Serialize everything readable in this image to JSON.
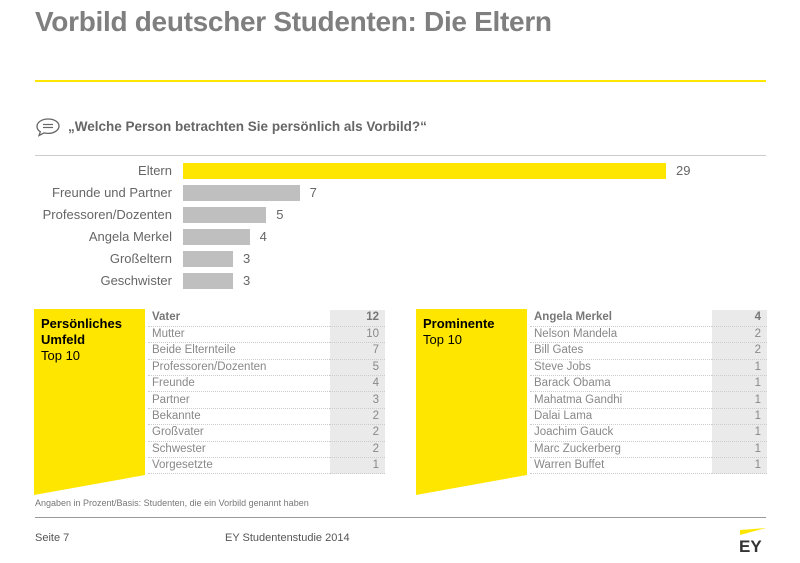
{
  "title": "Vorbild deutscher Studenten: Die Eltern",
  "question": "„Welche Person betrachten Sie persönlich als Vorbild?“",
  "colors": {
    "accent": "#ffe600",
    "bar_gray": "#bfbfbf"
  },
  "chart_data": {
    "type": "bar",
    "orientation": "horizontal",
    "categories": [
      "Eltern",
      "Freunde und Partner",
      "Professoren/Dozenten",
      "Angela Merkel",
      "Großeltern",
      "Geschwister"
    ],
    "values": [
      29,
      7,
      5,
      4,
      3,
      3
    ],
    "highlight": "Eltern"
  },
  "panels": [
    {
      "title": "Persönliches Umfeld",
      "subtitle": "Top 10",
      "rows": [
        [
          "Vater",
          "12"
        ],
        [
          "Mutter",
          "10"
        ],
        [
          "Beide Elternteile",
          "7"
        ],
        [
          "Professoren/Dozenten",
          "5"
        ],
        [
          "Freunde",
          "4"
        ],
        [
          "Partner",
          "3"
        ],
        [
          "Bekannte",
          "2"
        ],
        [
          "Großvater",
          "2"
        ],
        [
          "Schwester",
          "2"
        ],
        [
          "Vorgesetzte",
          "1"
        ]
      ]
    },
    {
      "title": "Prominente",
      "subtitle": "Top 10",
      "rows": [
        [
          "Angela Merkel",
          "4"
        ],
        [
          "Nelson Mandela",
          "2"
        ],
        [
          "Bill Gates",
          "2"
        ],
        [
          "Steve Jobs",
          "1"
        ],
        [
          "Barack Obama",
          "1"
        ],
        [
          "Mahatma Gandhi",
          "1"
        ],
        [
          "Dalai Lama",
          "1"
        ],
        [
          "Joachim Gauck",
          "1"
        ],
        [
          "Marc Zuckerberg",
          "1"
        ],
        [
          "Warren Buffet",
          "1"
        ]
      ]
    }
  ],
  "note": "Angaben in Prozent/Basis: Studenten, die ein Vorbild genannt haben",
  "footer": {
    "page": "Seite 7",
    "study": "EY Studentenstudie 2014",
    "logo": "EY"
  }
}
